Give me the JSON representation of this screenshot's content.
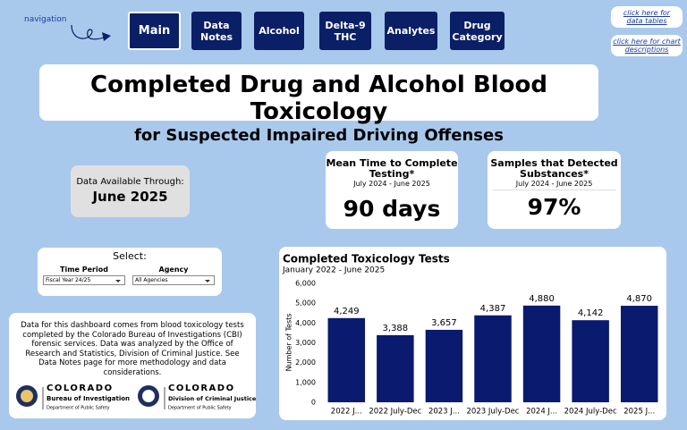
{
  "navigation": {
    "label": "navigation",
    "tabs": [
      "Main",
      "Data Notes",
      "Alcohol",
      "Delta-9 THC",
      "Analytes",
      "Drug Category"
    ]
  },
  "links": [
    "click here for data tables",
    "click here for chart descriptions"
  ],
  "header": {
    "title": "Completed Drug and Alcohol Blood Toxicology",
    "subtitle": "for Suspected Impaired Driving Offenses"
  },
  "data_available": {
    "label": "Data Available Through:",
    "value": "June 2025"
  },
  "kpis": [
    {
      "title": "Mean Time to Complete Testing*",
      "period": "July 2024 - June 2025",
      "value": "90 days"
    },
    {
      "title": "Samples that Detected Substances*",
      "period": "July 2024 - June 2025",
      "value": "97%"
    }
  ],
  "select": {
    "title": "Select:",
    "filters": [
      {
        "label": "Time Period",
        "value": "Fiscal Year 24/25"
      },
      {
        "label": "Agency",
        "value": "All Agencies"
      }
    ]
  },
  "note": {
    "text": "Data for this dashboard comes from blood toxicology tests completed by the Colorado Bureau of Investigations (CBI) forensic services. Data was analyzed by the Office of Research and Statistics, Division of Criminal Justice. See Data Notes page for more methodology and data considerations.",
    "logos": [
      {
        "name": "COLORADO",
        "org": "Bureau of Investigation",
        "dept": "Department of Public Safety"
      },
      {
        "name": "COLORADO",
        "org": "Division of Criminal Justice",
        "dept": "Department of Public Safety"
      }
    ]
  },
  "chart_data": {
    "type": "bar",
    "title": "Completed Toxicology Tests",
    "subtitle": "January 2022 - June 2025",
    "y_label": "Number of Tests",
    "categories": [
      "2022 J...",
      "2022 July-Dec",
      "2023 J...",
      "2023 July-Dec",
      "2024 J...",
      "2024 July-Dec",
      "2025 J..."
    ],
    "values": [
      4249,
      3388,
      3657,
      4387,
      4880,
      4142,
      4870
    ],
    "value_labels": [
      "4,249",
      "3,388",
      "3,657",
      "4,387",
      "4,880",
      "4,142",
      "4,870"
    ],
    "color": "#0a1a6e",
    "ylim": [
      0,
      6000
    ],
    "yticks": [
      0,
      {
        "value": 1000,
        "label": "1,000"
      },
      {
        "value": 2000,
        "label": "2,000"
      },
      {
        "value": 3000,
        "label": "3,000"
      },
      {
        "value": 4000,
        "label": "4,000"
      },
      {
        "value": 5000,
        "label": "5,000"
      },
      {
        "value": 6000,
        "label": "6,000"
      }
    ],
    "grid": false
  }
}
